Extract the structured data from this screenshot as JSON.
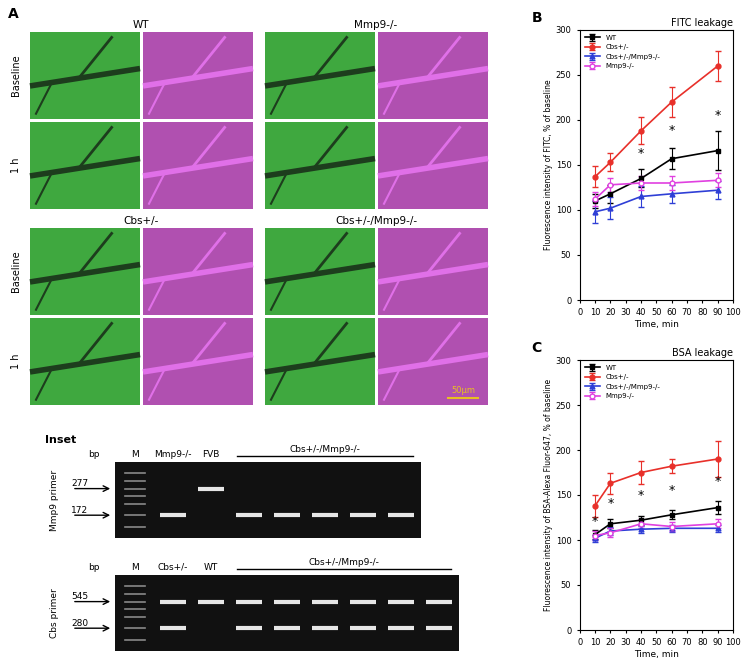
{
  "chart_data": [
    {
      "type": "line",
      "panel_label": "B",
      "title": "FITC leakage",
      "x_label": "Time, min",
      "y_label": "Fluorescence intensity of FITC, % of baseline",
      "x": [
        10,
        20,
        40,
        60,
        90
      ],
      "xlim": [
        0,
        100
      ],
      "xticks": [
        0,
        10,
        20,
        30,
        40,
        50,
        60,
        70,
        80,
        90,
        100
      ],
      "ylim": [
        0,
        300
      ],
      "yticks": [
        0,
        50,
        100,
        150,
        200,
        250,
        300
      ],
      "legend": "upper left",
      "series": [
        {
          "name": "WT",
          "color": "#000000",
          "marker": "square",
          "values": [
            110,
            118,
            135,
            157,
            166
          ],
          "errors": [
            8,
            10,
            10,
            12,
            22
          ]
        },
        {
          "name": "Cbs+/-",
          "color": "#e8302a",
          "marker": "circle",
          "values": [
            137,
            153,
            188,
            220,
            260
          ],
          "errors": [
            12,
            10,
            15,
            17,
            17
          ]
        },
        {
          "name": "Cbs+/-/Mmp9-/-",
          "color": "#2f3fd6",
          "marker": "triangle",
          "values": [
            98,
            102,
            115,
            118,
            122
          ],
          "errors": [
            12,
            12,
            12,
            10,
            10
          ]
        },
        {
          "name": "Mmp9-/-",
          "color": "#e040e0",
          "marker": "open circle",
          "values": [
            112,
            128,
            130,
            130,
            133
          ],
          "errors": [
            8,
            8,
            8,
            8,
            8
          ]
        }
      ],
      "annotations": [
        {
          "text": "*",
          "x": 40,
          "y": 163
        },
        {
          "text": "*",
          "x": 60,
          "y": 188
        },
        {
          "text": "*",
          "x": 90,
          "y": 205
        }
      ]
    },
    {
      "type": "line",
      "panel_label": "C",
      "title": "BSA leakage",
      "x_label": "Time, min",
      "y_label": "Fluorescence intensity of BSA-Alexa Fluor-647, % of baseline",
      "x": [
        10,
        20,
        40,
        60,
        90
      ],
      "xlim": [
        0,
        100
      ],
      "xticks": [
        0,
        10,
        20,
        30,
        40,
        50,
        60,
        70,
        80,
        90,
        100
      ],
      "ylim": [
        0,
        300
      ],
      "yticks": [
        0,
        50,
        100,
        150,
        200,
        250,
        300
      ],
      "legend": "upper left",
      "series": [
        {
          "name": "WT",
          "color": "#000000",
          "marker": "square",
          "values": [
            106,
            118,
            122,
            128,
            136
          ],
          "errors": [
            5,
            5,
            5,
            5,
            7
          ]
        },
        {
          "name": "Cbs+/-",
          "color": "#e8302a",
          "marker": "circle",
          "values": [
            138,
            163,
            175,
            182,
            190
          ],
          "errors": [
            12,
            12,
            13,
            8,
            20
          ]
        },
        {
          "name": "Cbs+/-/Mmp9-/-",
          "color": "#2f3fd6",
          "marker": "triangle",
          "values": [
            102,
            110,
            112,
            113,
            113
          ],
          "errors": [
            4,
            4,
            4,
            4,
            4
          ]
        },
        {
          "name": "Mmp9-/-",
          "color": "#e040e0",
          "marker": "open circle",
          "values": [
            105,
            108,
            118,
            115,
            118
          ],
          "errors": [
            5,
            5,
            5,
            5,
            5
          ]
        }
      ],
      "annotations": [
        {
          "text": "*",
          "x": 10,
          "y": 120
        },
        {
          "text": "*",
          "x": 20,
          "y": 140
        },
        {
          "text": "*",
          "x": 40,
          "y": 150
        },
        {
          "text": "*",
          "x": 60,
          "y": 155
        },
        {
          "text": "*",
          "x": 90,
          "y": 165
        }
      ]
    }
  ],
  "panel_a": {
    "label": "A",
    "groups": [
      {
        "title": "WT"
      },
      {
        "title": "Mmp9-/-"
      },
      {
        "title": "Cbs+/-"
      },
      {
        "title": "Cbs+/-/Mmp9-/-"
      }
    ],
    "rows": [
      "Baseline",
      "1 h"
    ],
    "scale_bar": "50μm"
  },
  "inset": {
    "title": "Inset",
    "gels": [
      {
        "primer": "Mmp9 primer",
        "ladder": "M",
        "unit": "bp",
        "sizes": [
          277,
          172
        ],
        "lanes": [
          "Mmp9-/-",
          "FVB"
        ],
        "group": "Cbs+/-/Mmp9-/-"
      },
      {
        "primer": "Cbs primer",
        "ladder": "M",
        "unit": "bp",
        "sizes": [
          545,
          280
        ],
        "lanes": [
          "Cbs+/-",
          "WT"
        ],
        "group": "Cbs+/-/Mmp9-/-"
      }
    ]
  }
}
